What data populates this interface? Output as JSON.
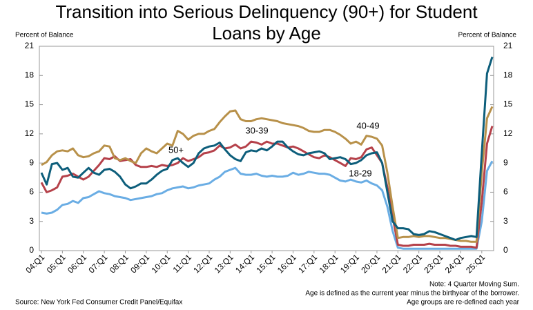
{
  "chart_data": {
    "type": "line",
    "title": "Transition into Serious Delinquency (90+) for Student Loans by Age",
    "y_label": "Percent of Balance",
    "y2_label": "Percent of Balance",
    "notes": [
      "Note: 4 Quarter Moving Sum.",
      "Age is defined as the current year minus the birthyear of the borrower.",
      "Age groups are re-defined each year"
    ],
    "source": "Source: New York Fed Consumer Credit Panel/Equifax",
    "categories": [
      "04:Q1",
      null,
      null,
      null,
      "05:Q1",
      null,
      null,
      null,
      "06:Q1",
      null,
      null,
      null,
      "07:Q1",
      null,
      null,
      null,
      "08:Q1",
      null,
      null,
      null,
      "09:Q1",
      null,
      null,
      null,
      "10:Q1",
      null,
      null,
      null,
      "11:Q1",
      null,
      null,
      null,
      "12:Q1",
      null,
      null,
      null,
      "13:Q1",
      null,
      null,
      null,
      "14:Q1",
      null,
      null,
      null,
      "15:Q1",
      null,
      null,
      null,
      "16:Q1",
      null,
      null,
      null,
      "17:Q1",
      null,
      null,
      null,
      "18:Q1",
      null,
      null,
      null,
      "19:Q1",
      null,
      null,
      null,
      "20:Q1",
      null,
      null,
      null,
      "21:Q1",
      null,
      null,
      null,
      "22:Q1",
      null,
      null,
      null,
      "23:Q1",
      null,
      null,
      null,
      "24:Q1",
      null,
      null,
      null,
      "25:Q1",
      null,
      null
    ],
    "series": [
      {
        "name": "18-29",
        "color": "#6aade4",
        "values": [
          3.9,
          3.8,
          3.9,
          4.2,
          4.7,
          4.8,
          5.1,
          4.9,
          5.4,
          5.5,
          5.8,
          6.1,
          5.9,
          5.8,
          5.6,
          5.5,
          5.4,
          5.2,
          5.3,
          5.4,
          5.5,
          5.6,
          5.8,
          5.9,
          6.2,
          6.4,
          6.5,
          6.6,
          6.4,
          6.5,
          6.7,
          6.8,
          6.9,
          7.3,
          7.6,
          8.1,
          8.3,
          8.5,
          7.9,
          7.8,
          7.8,
          7.9,
          7.7,
          7.6,
          7.7,
          7.6,
          7.6,
          7.7,
          8.0,
          7.8,
          7.9,
          8.1,
          8.0,
          7.9,
          7.9,
          7.8,
          7.5,
          7.2,
          7.1,
          7.3,
          7.1,
          7.0,
          7.2,
          6.9,
          6.7,
          6.2,
          4.5,
          2.0,
          0.3,
          0.2,
          0.2,
          0.2,
          0.2,
          0.2,
          0.2,
          0.2,
          0.2,
          0.2,
          0.2,
          0.2,
          0.2,
          0.2,
          0.2,
          0.2,
          3.0,
          8.2,
          9.2
        ]
      },
      {
        "name": "30-39",
        "color": "#b5414a",
        "values": [
          7.0,
          6.0,
          6.2,
          6.5,
          7.6,
          7.7,
          7.9,
          7.6,
          7.3,
          7.6,
          8.2,
          8.8,
          9.5,
          9.4,
          9.7,
          9.2,
          9.3,
          9.4,
          8.8,
          8.6,
          8.6,
          8.7,
          8.6,
          8.8,
          8.7,
          8.8,
          9.0,
          9.5,
          9.2,
          9.4,
          9.6,
          10.0,
          10.1,
          10.3,
          10.8,
          10.5,
          10.6,
          10.9,
          10.5,
          10.7,
          11.2,
          11.1,
          10.9,
          11.2,
          11.0,
          11.0,
          10.8,
          10.6,
          10.7,
          10.5,
          10.2,
          9.9,
          9.6,
          9.5,
          9.8,
          9.6,
          9.3,
          9.0,
          8.7,
          9.5,
          9.4,
          9.6,
          10.4,
          10.6,
          9.8,
          9.0,
          6.5,
          3.5,
          0.6,
          0.5,
          0.5,
          0.6,
          0.6,
          0.6,
          0.7,
          0.6,
          0.6,
          0.6,
          0.5,
          0.5,
          0.4,
          0.4,
          0.4,
          0.3,
          5.0,
          11.0,
          12.8
        ]
      },
      {
        "name": "40-49",
        "color": "#b8914a",
        "values": [
          8.8,
          9.1,
          9.8,
          10.2,
          10.3,
          10.2,
          10.5,
          9.8,
          9.6,
          9.7,
          10.0,
          10.2,
          10.8,
          10.7,
          9.5,
          9.3,
          9.5,
          9.2,
          9.0,
          10.0,
          10.5,
          10.2,
          10.0,
          10.5,
          11.0,
          10.8,
          12.3,
          12.0,
          11.4,
          11.8,
          12.0,
          12.0,
          12.3,
          12.5,
          13.2,
          13.8,
          14.3,
          14.4,
          13.5,
          13.3,
          13.3,
          13.5,
          13.6,
          13.5,
          13.4,
          13.3,
          13.1,
          13.0,
          12.9,
          12.8,
          12.6,
          12.3,
          12.2,
          12.2,
          12.4,
          12.4,
          12.2,
          11.9,
          11.5,
          11.0,
          11.2,
          10.9,
          11.8,
          11.7,
          11.5,
          10.8,
          8.0,
          4.5,
          1.3,
          1.4,
          1.4,
          1.5,
          1.4,
          1.5,
          1.5,
          1.4,
          1.3,
          1.3,
          1.2,
          1.1,
          1.0,
          1.0,
          0.9,
          0.9,
          8.0,
          13.6,
          14.8
        ]
      },
      {
        "name": "50+",
        "color": "#0d5e7b",
        "values": [
          8.0,
          6.8,
          8.9,
          9.0,
          8.3,
          8.5,
          7.6,
          7.5,
          8.0,
          8.5,
          8.0,
          7.8,
          8.3,
          8.4,
          8.1,
          7.6,
          6.8,
          6.4,
          6.6,
          6.9,
          6.9,
          7.3,
          7.8,
          8.2,
          8.4,
          9.3,
          9.5,
          9.0,
          8.6,
          9.0,
          10.0,
          10.5,
          10.7,
          10.8,
          11.1,
          10.4,
          9.8,
          9.4,
          9.2,
          10.1,
          10.3,
          10.2,
          10.5,
          10.3,
          10.7,
          11.2,
          11.2,
          10.6,
          10.2,
          9.9,
          9.8,
          10.0,
          10.1,
          10.2,
          10.0,
          9.4,
          9.5,
          9.6,
          9.4,
          8.9,
          9.0,
          9.3,
          9.8,
          10.0,
          10.1,
          9.0,
          6.0,
          3.0,
          2.3,
          2.3,
          2.2,
          1.7,
          1.6,
          1.7,
          2.0,
          1.9,
          1.7,
          1.5,
          1.3,
          1.1,
          1.3,
          1.4,
          1.5,
          1.4,
          10.0,
          18.2,
          19.9
        ]
      }
    ],
    "ylim": [
      0,
      21
    ],
    "yticks": [
      0,
      3,
      6,
      9,
      12,
      15,
      18,
      21
    ],
    "y2lim": [
      0,
      21
    ],
    "y2ticks": [
      0,
      3,
      6,
      9,
      12,
      15,
      18,
      21
    ],
    "grid": false
  }
}
